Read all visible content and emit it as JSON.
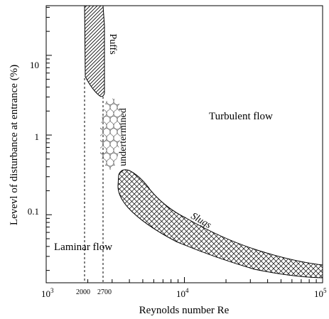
{
  "chart_data": {
    "type": "diagram",
    "xscale": "log",
    "yscale": "log",
    "xlim": [
      1000,
      100000
    ],
    "ylim": [
      0.014,
      42
    ],
    "xlabel": "Reynolds number Re",
    "ylabel": "Levevl of disturbance at entrance  (%)",
    "x_major_ticks": [
      {
        "value": 1000,
        "base": "10",
        "exp": "3"
      },
      {
        "value": 10000,
        "base": "10",
        "exp": "4"
      },
      {
        "value": 100000,
        "base": "10",
        "exp": "5"
      }
    ],
    "x_special_ticks": [
      {
        "value": 2000,
        "label": "2000"
      },
      {
        "value": 2700,
        "label": "2700"
      }
    ],
    "y_major_ticks": [
      {
        "value": 10,
        "label": "10"
      },
      {
        "value": 1,
        "label": "1"
      },
      {
        "value": 0.1,
        "label": "0.1"
      }
    ],
    "regions": {
      "laminar_label": "Laminar flow",
      "turbulent_label": "Turbulent flow",
      "puffs_label": "Puffs",
      "undetermined_label": "undertermined",
      "slugs_label": "Slugs"
    },
    "dashed_lines": [
      {
        "x": 2000,
        "y_top": 6.5
      },
      {
        "x": 2700,
        "y_top": 3.8
      }
    ]
  }
}
